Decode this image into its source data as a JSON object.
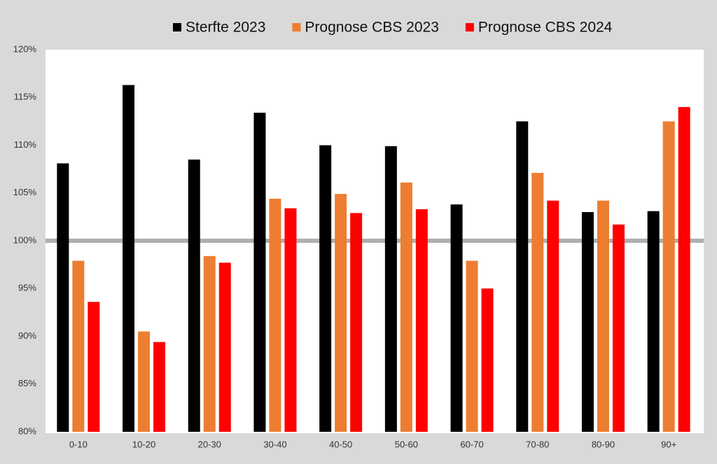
{
  "chart_data": {
    "type": "bar",
    "categories": [
      "0-10",
      "10-20",
      "20-30",
      "30-40",
      "40-50",
      "50-60",
      "60-70",
      "70-80",
      "80-90",
      "90+"
    ],
    "series": [
      {
        "name": "Sterfte 2023",
        "color": "#000000",
        "values": [
          108.1,
          116.3,
          108.5,
          113.4,
          110.0,
          109.9,
          103.8,
          112.5,
          103.0,
          103.1
        ]
      },
      {
        "name": "Prognose CBS 2023",
        "color": "#ed7d31",
        "values": [
          97.9,
          90.5,
          98.4,
          104.4,
          104.9,
          106.1,
          97.9,
          107.1,
          104.2,
          112.5
        ]
      },
      {
        "name": "Prognose CBS 2024",
        "color": "#ff0000",
        "values": [
          93.6,
          89.4,
          97.7,
          103.4,
          102.9,
          103.3,
          95.0,
          104.2,
          101.7,
          114.0
        ]
      }
    ],
    "ylim": [
      80,
      120
    ],
    "yticks": [
      {
        "value": 80,
        "label": "80%"
      },
      {
        "value": 85,
        "label": "85%"
      },
      {
        "value": 90,
        "label": "90%"
      },
      {
        "value": 95,
        "label": "95%"
      },
      {
        "value": 100,
        "label": "100%"
      },
      {
        "value": 105,
        "label": "105%"
      },
      {
        "value": 110,
        "label": "110%"
      },
      {
        "value": 115,
        "label": "115%"
      },
      {
        "value": 120,
        "label": "120%"
      }
    ],
    "reference_line": 100,
    "grid": false,
    "legend": "top"
  }
}
